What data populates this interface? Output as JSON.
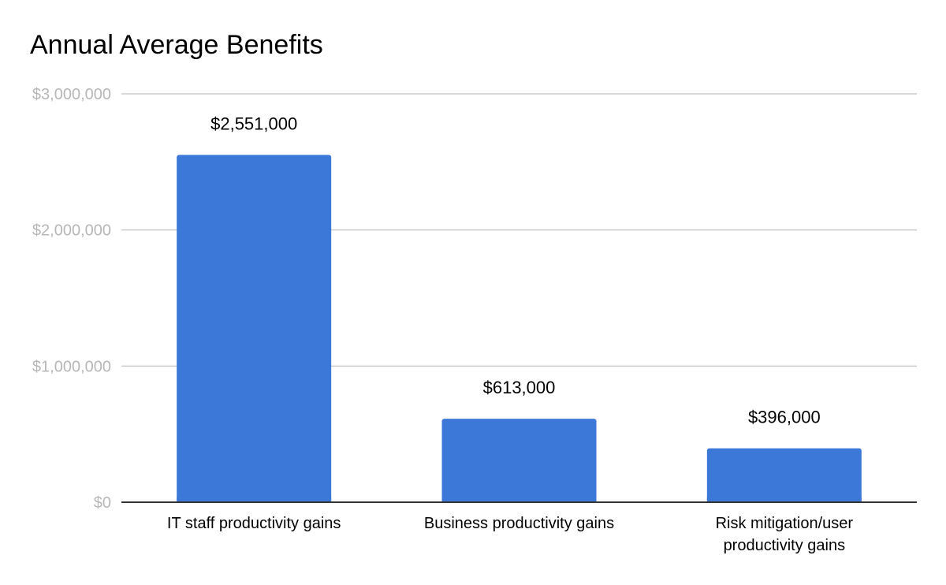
{
  "chart_data": {
    "type": "bar",
    "title": "Annual Average Benefits",
    "xlabel": "",
    "ylabel": "",
    "categories": [
      "IT staff productivity gains",
      "Business productivity gains",
      "Risk mitigation/user productivity gains"
    ],
    "category_lines": [
      [
        "IT staff productivity gains"
      ],
      [
        "Business productivity gains"
      ],
      [
        "Risk mitigation/user",
        "productivity gains"
      ]
    ],
    "values": [
      2551000,
      613000,
      396000
    ],
    "data_labels": [
      "$2,551,000",
      "$613,000",
      "$396,000"
    ],
    "ylim": [
      0,
      3000000
    ],
    "yticks": [
      0,
      1000000,
      2000000,
      3000000
    ],
    "ytick_labels": [
      "$0",
      "$1,000,000",
      "$2,000,000",
      "$3,000,000"
    ],
    "grid": true,
    "legend": "none",
    "colors": {
      "bar": "#3c78d8",
      "grid": "#cccccc",
      "axis": "#333333",
      "tick_text": "#b7b7b7",
      "label_text": "#000000"
    }
  }
}
